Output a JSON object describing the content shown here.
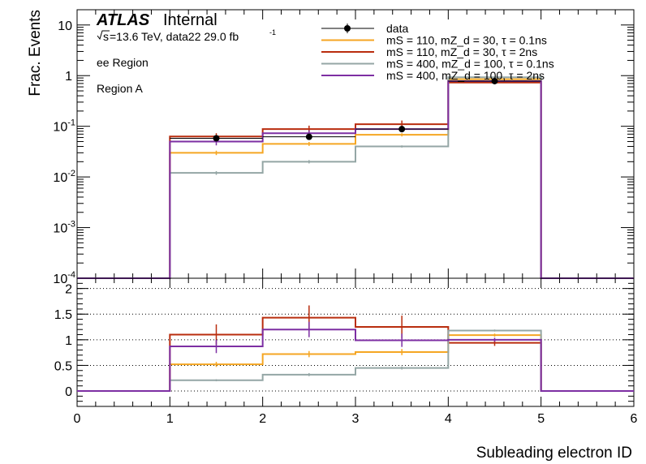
{
  "chart_data": {
    "type": "line",
    "title": "",
    "annotation": {
      "experiment": "ATLAS",
      "status": "Internal",
      "energy_prefix": "s",
      "energy_text": "=13.6 TeV, data22 29.0 fb",
      "lumi_superscript": "-1",
      "lines": [
        "ee Region",
        "Region A"
      ]
    },
    "xlabel": "Subleading electron ID",
    "ylabel": "Frac. Events",
    "xlim": [
      0,
      6
    ],
    "xticks": [
      "0",
      "1",
      "2",
      "3",
      "4",
      "5",
      "6"
    ],
    "bin_edges": [
      0,
      1,
      2,
      3,
      4,
      5,
      6
    ],
    "legend_position": "top-right",
    "main_panel": {
      "yscale": "log",
      "ylim": [
        0.0001,
        20
      ],
      "ytick_labels": [
        {
          "value": 10,
          "base": "10",
          "exp": ""
        },
        {
          "value": 1,
          "base": "1",
          "exp": ""
        },
        {
          "value": 0.1,
          "base": "10",
          "exp": "-1"
        },
        {
          "value": 0.01,
          "base": "10",
          "exp": "-2"
        },
        {
          "value": 0.001,
          "base": "10",
          "exp": "-3"
        },
        {
          "value": 0.0001,
          "base": "10",
          "exp": "-4"
        }
      ],
      "data": {
        "name": "data",
        "color": "#000000",
        "x": [
          1.5,
          2.5,
          3.5,
          4.5
        ],
        "y": [
          0.058,
          0.062,
          0.088,
          0.78
        ],
        "err": [
          0.008,
          0.008,
          0.01,
          0.03
        ]
      },
      "series": [
        {
          "name": "mS = 110, mZ_d = 30, τ = 0.1ns",
          "color": "#f5a623",
          "values": [
            0,
            0.03,
            0.045,
            0.068,
            0.85,
            0
          ],
          "err": [
            0,
            0.003,
            0.004,
            0.005,
            0.03,
            0
          ]
        },
        {
          "name": "mS = 110, mZ_d = 30, τ = 2ns",
          "color": "#b92d0e",
          "values": [
            0,
            0.063,
            0.088,
            0.11,
            0.73,
            0
          ],
          "err": [
            0,
            0.01,
            0.015,
            0.02,
            0.05,
            0
          ]
        },
        {
          "name": "mS = 400, mZ_d = 100, τ = 0.1ns",
          "color": "#94a6a5",
          "values": [
            0,
            0.012,
            0.02,
            0.04,
            0.93,
            0
          ],
          "err": [
            0,
            0.001,
            0.0015,
            0.002,
            0.02,
            0
          ]
        },
        {
          "name": "mS = 400, mZ_d = 100, τ = 2ns",
          "color": "#7d2fa3",
          "values": [
            0,
            0.05,
            0.073,
            0.088,
            0.78,
            0
          ],
          "err": [
            0,
            0.008,
            0.01,
            0.012,
            0.03,
            0
          ]
        }
      ]
    },
    "ratio_panel": {
      "ylim": [
        -0.3,
        2.2
      ],
      "yticks": [
        0,
        0.5,
        1,
        1.5,
        2
      ],
      "ytick_labels": [
        "0",
        "0.5",
        "1",
        "1.5",
        "2"
      ],
      "grid": "dotted at 0, 0.5, 1, 1.5, 2",
      "series": [
        {
          "name": "mS = 110, mZ_d = 30, τ = 0.1ns",
          "color": "#f5a623",
          "values": [
            0,
            0.52,
            0.72,
            0.76,
            1.09,
            0
          ],
          "err": [
            0,
            0.05,
            0.06,
            0.06,
            0.03,
            0
          ]
        },
        {
          "name": "mS = 110, mZ_d = 30, τ = 2ns",
          "color": "#b92d0e",
          "values": [
            0,
            1.1,
            1.43,
            1.25,
            0.94,
            0
          ],
          "err": [
            0,
            0.2,
            0.24,
            0.22,
            0.06,
            0
          ]
        },
        {
          "name": "mS = 400, mZ_d = 100, τ = 0.1ns",
          "color": "#94a6a5",
          "values": [
            0,
            0.21,
            0.32,
            0.45,
            1.18,
            0
          ],
          "err": [
            0,
            0.02,
            0.03,
            0.03,
            0.02,
            0
          ]
        },
        {
          "name": "mS = 400, mZ_d = 100, τ = 2ns",
          "color": "#7d2fa3",
          "values": [
            0,
            0.87,
            1.2,
            0.99,
            1.0,
            0
          ],
          "err": [
            0,
            0.13,
            0.15,
            0.13,
            0.04,
            0
          ]
        }
      ]
    }
  }
}
